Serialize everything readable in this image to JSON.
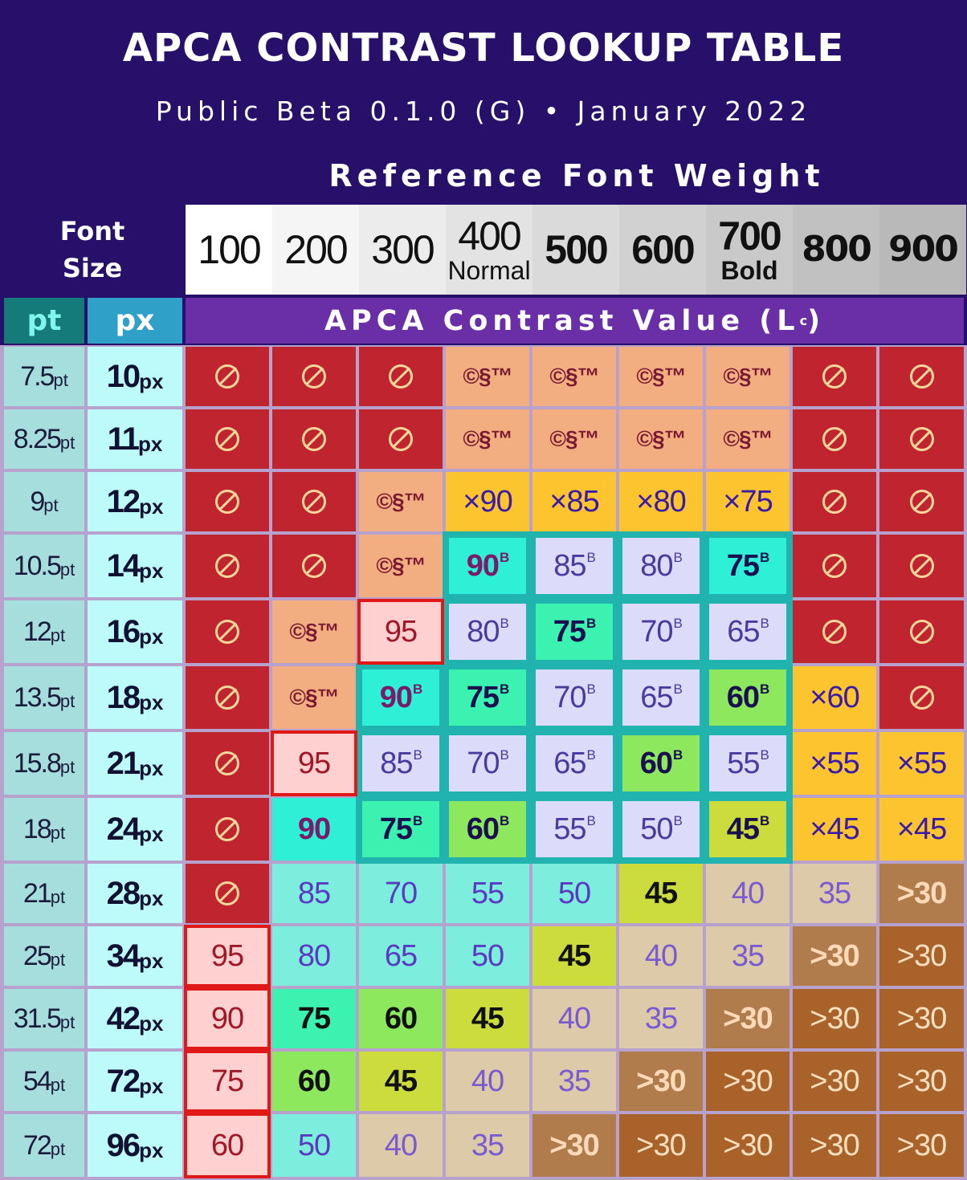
{
  "title": "APCA CONTRAST LOOKUP TABLE",
  "subtitle": "Public Beta 0.1.0 (G) • January 2022",
  "reference_heading": "Reference Font Weight",
  "font_size_label": [
    "Font",
    "Size"
  ],
  "weights": [
    {
      "value": "100",
      "label": ""
    },
    {
      "value": "200",
      "label": ""
    },
    {
      "value": "300",
      "label": ""
    },
    {
      "value": "400",
      "label": "Normal"
    },
    {
      "value": "500",
      "label": ""
    },
    {
      "value": "600",
      "label": ""
    },
    {
      "value": "700",
      "label": "Bold"
    },
    {
      "value": "800",
      "label": ""
    },
    {
      "value": "900",
      "label": ""
    }
  ],
  "column_headers": {
    "pt": "pt",
    "px": "px",
    "contrast": "APCA Contrast Value (L",
    "contrast_sup": "c",
    "contrast_end": ")"
  },
  "rows": [
    {
      "pt": "7.5",
      "px": "10",
      "values": [
        "⊘",
        "⊘",
        "⊘",
        "©§™",
        "©§™",
        "©§™",
        "©§™",
        "⊘",
        "⊘"
      ]
    },
    {
      "pt": "8.25",
      "px": "11",
      "values": [
        "⊘",
        "⊘",
        "⊘",
        "©§™",
        "©§™",
        "©§™",
        "©§™",
        "⊘",
        "⊘"
      ]
    },
    {
      "pt": "9",
      "px": "12",
      "values": [
        "⊘",
        "⊘",
        "©§™",
        "×90",
        "×85",
        "×80",
        "×75",
        "⊘",
        "⊘"
      ]
    },
    {
      "pt": "10.5",
      "px": "14",
      "values": [
        "⊘",
        "⊘",
        "©§™",
        "90B",
        "85B",
        "80B",
        "75B",
        "⊘",
        "⊘"
      ]
    },
    {
      "pt": "12",
      "px": "16",
      "values": [
        "⊘",
        "©§™",
        "95",
        "80B",
        "75B",
        "70B",
        "65B",
        "⊘",
        "⊘"
      ]
    },
    {
      "pt": "13.5",
      "px": "18",
      "values": [
        "⊘",
        "©§™",
        "90B",
        "75B",
        "70B",
        "65B",
        "60B",
        "×60",
        "⊘"
      ]
    },
    {
      "pt": "15.8",
      "px": "21",
      "values": [
        "⊘",
        "95",
        "85B",
        "70B",
        "65B",
        "60B",
        "55B",
        "×55",
        "×55"
      ]
    },
    {
      "pt": "18",
      "px": "24",
      "values": [
        "⊘",
        "90",
        "75B",
        "60B",
        "55B",
        "50B",
        "45B",
        "×45",
        "×45"
      ]
    },
    {
      "pt": "21",
      "px": "28",
      "values": [
        "⊘",
        "85",
        "70",
        "55",
        "50",
        "45",
        "40",
        "35",
        ">30"
      ]
    },
    {
      "pt": "25",
      "px": "34",
      "values": [
        "95",
        "80",
        "65",
        "50",
        "45",
        "40",
        "35",
        ">30",
        ">30"
      ]
    },
    {
      "pt": "31.5",
      "px": "42",
      "values": [
        "90",
        "75",
        "60",
        "45",
        "40",
        "35",
        ">30",
        ">30",
        ">30"
      ]
    },
    {
      "pt": "54",
      "px": "72",
      "values": [
        "75",
        "60",
        "45",
        "40",
        "35",
        ">30",
        ">30",
        ">30",
        ">30"
      ]
    },
    {
      "pt": "72",
      "px": "96",
      "values": [
        "60",
        "50",
        "40",
        "35",
        ">30",
        ">30",
        ">30",
        ">30",
        ">30"
      ]
    }
  ],
  "colors": {
    "background": "#26106a",
    "prohibited": "#c0242f",
    "copyright_only": "#f2ae80",
    "multiplier": "#fcc42e",
    "lavender": "#dcdcfa",
    "turquoise": "#2ef0d6",
    "mint": "#3cf2b0",
    "green": "#8ee85e",
    "lime": "#ccdc3c",
    "pink": "#ffd0d0",
    "aqua_light": "#7deede",
    "tan": "#dccaa8",
    "brown_light": "#b07c4c",
    "brown_dark": "#a8622a"
  }
}
